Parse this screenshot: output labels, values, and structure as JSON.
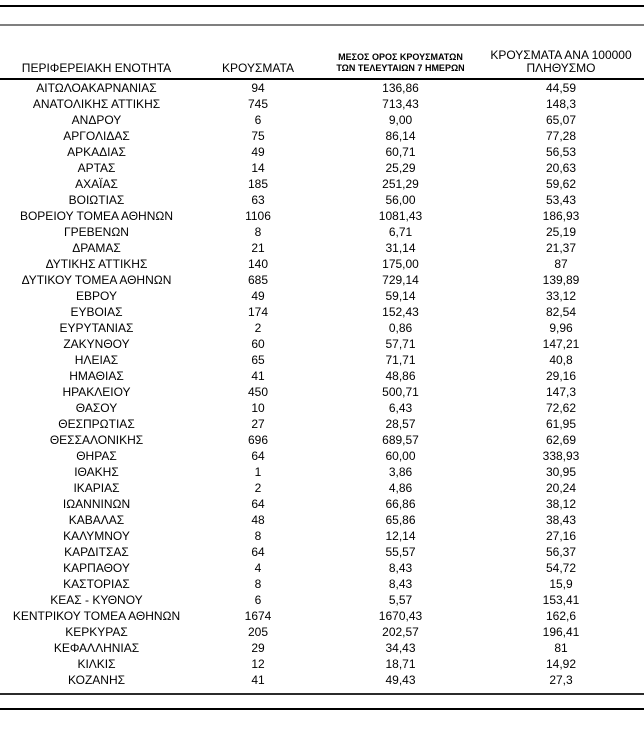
{
  "page": {
    "colors": {
      "rule_black": "#000000",
      "rule_gray": "#7f7f7f",
      "text": "#000000",
      "background": "#ffffff"
    },
    "table": {
      "headers": [
        {
          "lines": [
            "ΠΕΡΙΦΕΡΕΙΑΚΗ ΕΝΟΤΗΤΑ"
          ]
        },
        {
          "lines": [
            "ΚΡΟΥΣΜΑΤΑ"
          ]
        },
        {
          "lines": [
            "ΜΕΣΟΣ ΟΡΟΣ ΚΡΟΥΣΜΑΤΩΝ",
            "ΤΩΝ ΤΕΛΕΥΤΑΙΩΝ 7 ΗΜΕΡΩΝ"
          ]
        },
        {
          "lines": [
            "ΚΡΟΥΣΜΑΤΑ ΑΝΑ 100000",
            "ΠΛΗΘΥΣΜΟ"
          ]
        }
      ],
      "rows": [
        {
          "region": "ΑΙΤΩΛΟΑΚΑΡΝΑΝΙΑΣ",
          "cases": "94",
          "avg7": "136,86",
          "per100k": "44,59"
        },
        {
          "region": "ΑΝΑΤΟΛΙΚΗΣ ΑΤΤΙΚΗΣ",
          "cases": "745",
          "avg7": "713,43",
          "per100k": "148,3"
        },
        {
          "region": "ΑΝΔΡΟΥ",
          "cases": "6",
          "avg7": "9,00",
          "per100k": "65,07"
        },
        {
          "region": "ΑΡΓΟΛΙΔΑΣ",
          "cases": "75",
          "avg7": "86,14",
          "per100k": "77,28"
        },
        {
          "region": "ΑΡΚΑΔΙΑΣ",
          "cases": "49",
          "avg7": "60,71",
          "per100k": "56,53"
        },
        {
          "region": "ΑΡΤΑΣ",
          "cases": "14",
          "avg7": "25,29",
          "per100k": "20,63"
        },
        {
          "region": "ΑΧΑΪΑΣ",
          "cases": "185",
          "avg7": "251,29",
          "per100k": "59,62"
        },
        {
          "region": "ΒΟΙΩΤΙΑΣ",
          "cases": "63",
          "avg7": "56,00",
          "per100k": "53,43"
        },
        {
          "region": "ΒΟΡΕΙΟΥ ΤΟΜΕΑ ΑΘΗΝΩΝ",
          "cases": "1106",
          "avg7": "1081,43",
          "per100k": "186,93"
        },
        {
          "region": "ΓΡΕΒΕΝΩΝ",
          "cases": "8",
          "avg7": "6,71",
          "per100k": "25,19"
        },
        {
          "region": "ΔΡΑΜΑΣ",
          "cases": "21",
          "avg7": "31,14",
          "per100k": "21,37"
        },
        {
          "region": "ΔΥΤΙΚΗΣ ΑΤΤΙΚΗΣ",
          "cases": "140",
          "avg7": "175,00",
          "per100k": "87"
        },
        {
          "region": "ΔΥΤΙΚΟΥ ΤΟΜΕΑ ΑΘΗΝΩΝ",
          "cases": "685",
          "avg7": "729,14",
          "per100k": "139,89"
        },
        {
          "region": "ΕΒΡΟΥ",
          "cases": "49",
          "avg7": "59,14",
          "per100k": "33,12"
        },
        {
          "region": "ΕΥΒΟΙΑΣ",
          "cases": "174",
          "avg7": "152,43",
          "per100k": "82,54"
        },
        {
          "region": "ΕΥΡΥΤΑΝΙΑΣ",
          "cases": "2",
          "avg7": "0,86",
          "per100k": "9,96"
        },
        {
          "region": "ΖΑΚΥΝΘΟΥ",
          "cases": "60",
          "avg7": "57,71",
          "per100k": "147,21"
        },
        {
          "region": "ΗΛΕΙΑΣ",
          "cases": "65",
          "avg7": "71,71",
          "per100k": "40,8"
        },
        {
          "region": "ΗΜΑΘΙΑΣ",
          "cases": "41",
          "avg7": "48,86",
          "per100k": "29,16"
        },
        {
          "region": "ΗΡΑΚΛΕΙΟΥ",
          "cases": "450",
          "avg7": "500,71",
          "per100k": "147,3"
        },
        {
          "region": "ΘΑΣΟΥ",
          "cases": "10",
          "avg7": "6,43",
          "per100k": "72,62"
        },
        {
          "region": "ΘΕΣΠΡΩΤΙΑΣ",
          "cases": "27",
          "avg7": "28,57",
          "per100k": "61,95"
        },
        {
          "region": "ΘΕΣΣΑΛΟΝΙΚΗΣ",
          "cases": "696",
          "avg7": "689,57",
          "per100k": "62,69"
        },
        {
          "region": "ΘΗΡΑΣ",
          "cases": "64",
          "avg7": "60,00",
          "per100k": "338,93"
        },
        {
          "region": "ΙΘΑΚΗΣ",
          "cases": "1",
          "avg7": "3,86",
          "per100k": "30,95"
        },
        {
          "region": "ΙΚΑΡΙΑΣ",
          "cases": "2",
          "avg7": "4,86",
          "per100k": "20,24"
        },
        {
          "region": "ΙΩΑΝΝΙΝΩΝ",
          "cases": "64",
          "avg7": "66,86",
          "per100k": "38,12"
        },
        {
          "region": "ΚΑΒΑΛΑΣ",
          "cases": "48",
          "avg7": "65,86",
          "per100k": "38,43"
        },
        {
          "region": "ΚΑΛΥΜΝΟΥ",
          "cases": "8",
          "avg7": "12,14",
          "per100k": "27,16"
        },
        {
          "region": "ΚΑΡΔΙΤΣΑΣ",
          "cases": "64",
          "avg7": "55,57",
          "per100k": "56,37"
        },
        {
          "region": "ΚΑΡΠΑΘΟΥ",
          "cases": "4",
          "avg7": "8,43",
          "per100k": "54,72"
        },
        {
          "region": "ΚΑΣΤΟΡΙΑΣ",
          "cases": "8",
          "avg7": "8,43",
          "per100k": "15,9"
        },
        {
          "region": "ΚΕΑΣ - ΚΥΘΝΟΥ",
          "cases": "6",
          "avg7": "5,57",
          "per100k": "153,41"
        },
        {
          "region": "ΚΕΝΤΡΙΚΟΥ ΤΟΜΕΑ ΑΘΗΝΩΝ",
          "cases": "1674",
          "avg7": "1670,43",
          "per100k": "162,6"
        },
        {
          "region": "ΚΕΡΚΥΡΑΣ",
          "cases": "205",
          "avg7": "202,57",
          "per100k": "196,41"
        },
        {
          "region": "ΚΕΦΑΛΛΗΝΙΑΣ",
          "cases": "29",
          "avg7": "34,43",
          "per100k": "81"
        },
        {
          "region": "ΚΙΛΚΙΣ",
          "cases": "12",
          "avg7": "18,71",
          "per100k": "14,92"
        },
        {
          "region": "ΚΟΖΑΝΗΣ",
          "cases": "41",
          "avg7": "49,43",
          "per100k": "27,3"
        }
      ]
    }
  }
}
